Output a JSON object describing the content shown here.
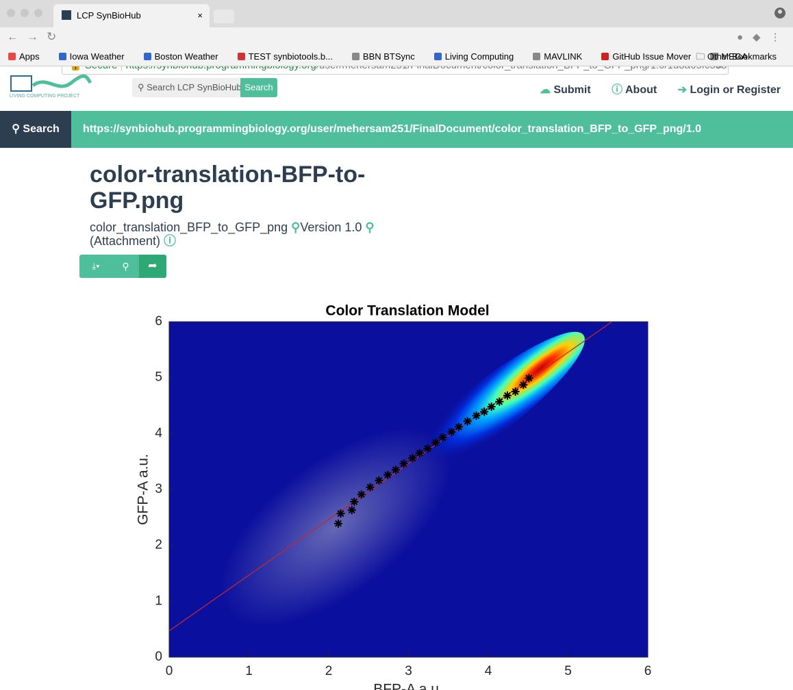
{
  "browser": {
    "tab_title": "LCP SynBioHub",
    "secure": "Secure",
    "url_host": "https://synbiohub.programmingbiology.org",
    "url_path": "/user/mehersam251/FinalDocument/color_translation_BFP_to_GFP_png/1.0/1d8a65fc538...",
    "bookmarks": [
      "Apps",
      "Iowa Weather",
      "Boston Weather",
      "TEST synbiotools.b...",
      "BBN BTSync",
      "Living Computing",
      "MAVLINK",
      "GitHub Issue Mover",
      "MEGA"
    ],
    "other_bookmarks": "Other Bookmarks"
  },
  "header": {
    "logo_text": "LIVING COMPUTING PROJECT",
    "search_placeholder": "Search LCP SynBioHub",
    "search_button": "Search",
    "nav": [
      "Submit",
      "About",
      "Login or Register"
    ]
  },
  "navbar": {
    "search": "Search",
    "uri": "https://synbiohub.programmingbiology.org/user/mehersam251/FinalDocument/color_translation_BFP_to_GFP_png/1.0"
  },
  "content": {
    "title": "color-translation-BFP-to-GFP.png",
    "display_id": "color_translation_BFP_to_GFP_png",
    "version": "Version 1.0",
    "type": "(Attachment)"
  },
  "chart_data": {
    "type": "scatter",
    "title": "Color Translation Model",
    "xlabel": "BFP-A a.u.",
    "ylabel": "GFP-A a.u.",
    "xlim": [
      0,
      6
    ],
    "ylim": [
      0,
      6
    ],
    "xticks": [
      0,
      1,
      2,
      3,
      4,
      5,
      6
    ],
    "yticks": [
      0,
      1,
      2,
      3,
      4,
      5,
      6
    ],
    "x": [
      2.12,
      2.15,
      2.29,
      2.32,
      2.41,
      2.52,
      2.63,
      2.74,
      2.84,
      2.94,
      3.05,
      3.14,
      3.24,
      3.34,
      3.43,
      3.54,
      3.63,
      3.74,
      3.85,
      3.95,
      4.04,
      4.14,
      4.24,
      4.34,
      4.44,
      4.51
    ],
    "y": [
      2.39,
      2.57,
      2.63,
      2.78,
      2.91,
      3.04,
      3.16,
      3.26,
      3.35,
      3.46,
      3.56,
      3.65,
      3.73,
      3.84,
      3.93,
      4.03,
      4.12,
      4.22,
      4.32,
      4.39,
      4.48,
      4.57,
      4.68,
      4.75,
      4.87,
      4.99
    ],
    "color": "#000000",
    "fit": {
      "x": [
        0,
        5.55
      ],
      "y": [
        0.47,
        6
      ],
      "color": "#c0282d"
    }
  }
}
